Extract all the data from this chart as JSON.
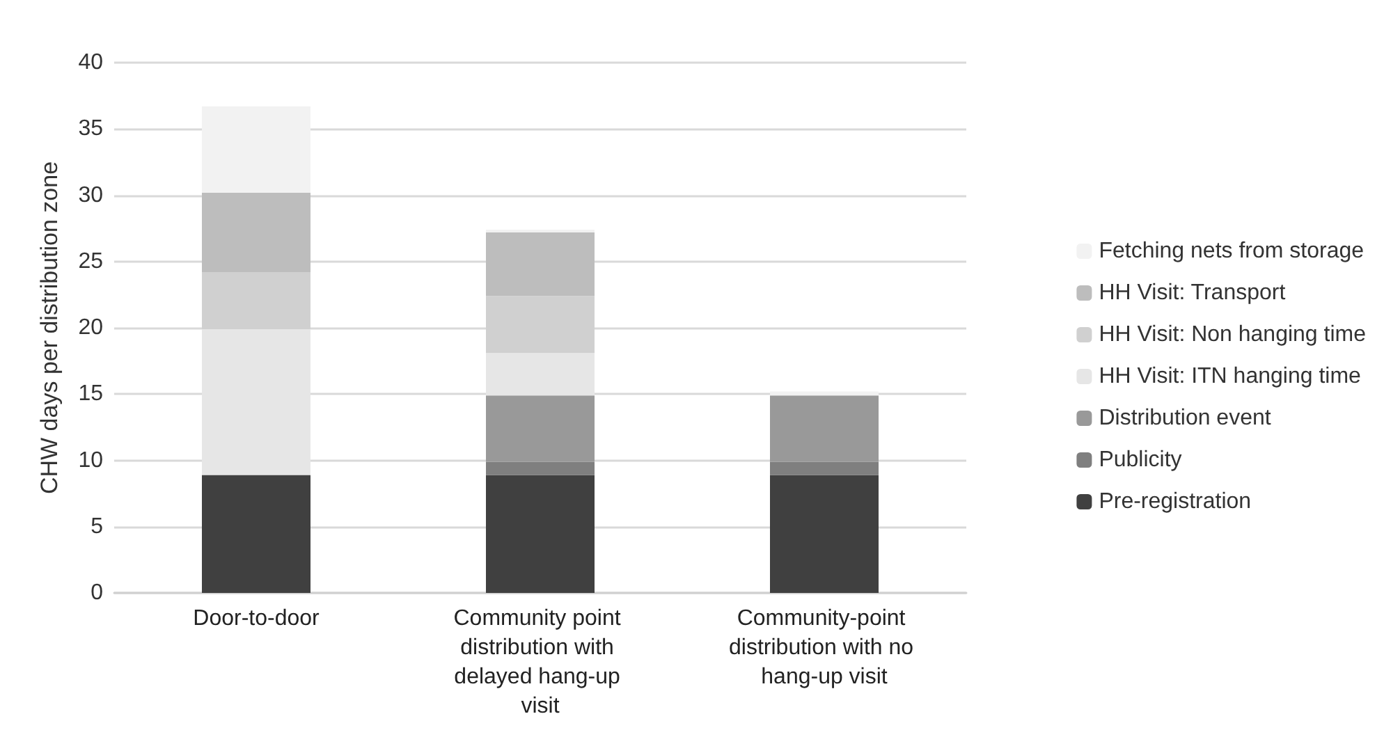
{
  "chart_data": {
    "type": "bar",
    "stacked": true,
    "ylabel": "CHW days per distribution zone",
    "categories": [
      "Door-to-door",
      "Community point distribution with delayed hang-up visit",
      "Community-point distribution with no hang-up visit"
    ],
    "series": [
      {
        "name": "Pre-registration",
        "color": "#404040",
        "values": [
          8.9,
          8.9,
          8.9
        ]
      },
      {
        "name": "Publicity",
        "color": "#7f7f7f",
        "values": [
          0,
          1,
          1
        ]
      },
      {
        "name": "Distribution event",
        "color": "#999999",
        "values": [
          0,
          5,
          5
        ]
      },
      {
        "name": "HH Visit: ITN hanging time",
        "color": "#e6e6e6",
        "values": [
          11,
          3.2,
          0
        ]
      },
      {
        "name": "HH Visit: Non hanging time",
        "color": "#d0d0d0",
        "values": [
          4.3,
          4.3,
          0
        ]
      },
      {
        "name": "HH Visit: Transport",
        "color": "#bdbdbd",
        "values": [
          6,
          4.8,
          0
        ]
      },
      {
        "name": "Fetching nets from storage",
        "color": "#f2f2f2",
        "values": [
          6.5,
          0.2,
          0.3
        ]
      }
    ],
    "ylim": [
      0,
      40
    ],
    "yticks": [
      0,
      5,
      10,
      15,
      20,
      25,
      30,
      35,
      40
    ],
    "grid": "y",
    "legend": "right"
  }
}
